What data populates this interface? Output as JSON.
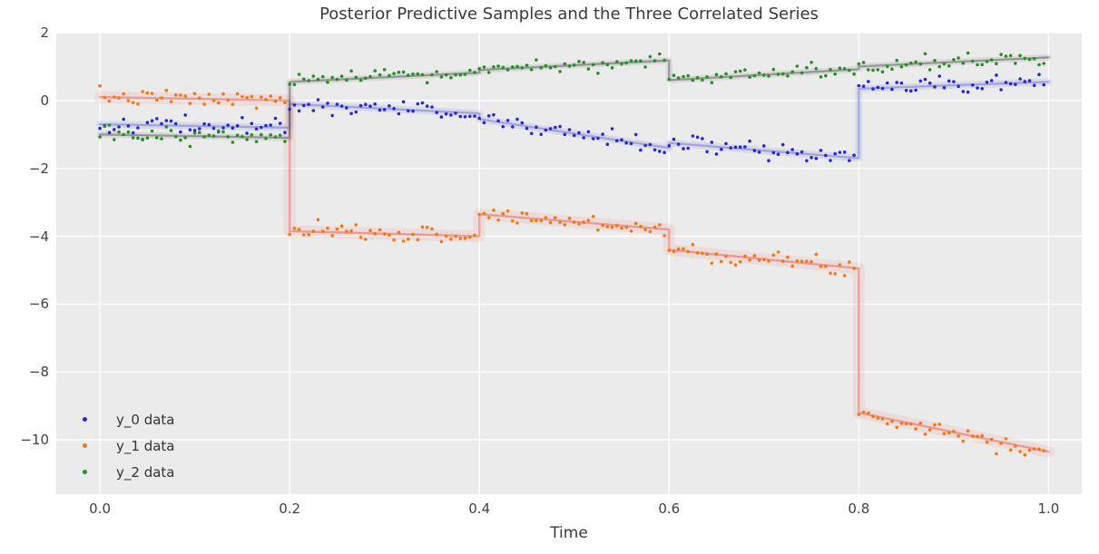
{
  "chart_data": {
    "type": "scatter",
    "title": "Posterior Predictive Samples and the Three Correlated Series",
    "xlabel": "Time",
    "ylabel": "",
    "xlim": [
      -0.046,
      1.035
    ],
    "ylim": [
      -11.6,
      2.0
    ],
    "xticks": [
      0.0,
      0.2,
      0.4,
      0.6,
      0.8,
      1.0
    ],
    "xtick_labels": [
      "0.0",
      "0.2",
      "0.4",
      "0.6",
      "0.8",
      "1.0"
    ],
    "yticks": [
      2,
      0,
      -2,
      -4,
      -6,
      -8,
      -10
    ],
    "ytick_labels": [
      "2",
      "0",
      "−2",
      "−4",
      "−6",
      "−8",
      "−10"
    ],
    "grid": true,
    "plot_bg": "#ebebeb",
    "grid_color": "#ffffff",
    "changepoints": [
      0.2,
      0.4,
      0.6,
      0.8
    ],
    "points_per_segment": 40,
    "legend": {
      "position": "lower left",
      "entries": [
        "y_0 data",
        "y_1 data",
        "y_2 data"
      ]
    },
    "series": [
      {
        "name": "y_0 data",
        "dot_color": "#2828cf",
        "band_halo": "rgba(100,108,224,0.13)",
        "band_core": "rgba(92,98,216,0.45)",
        "halo_width": 8,
        "core_width": 2.3,
        "noise_sd": 0.13,
        "seed": 42,
        "segments": [
          {
            "x": [
              0.0,
              0.2
            ],
            "y": [
              -0.7,
              -0.8
            ]
          },
          {
            "x": [
              0.2,
              0.4
            ],
            "y": [
              -0.1,
              -0.38
            ]
          },
          {
            "x": [
              0.4,
              0.6
            ],
            "y": [
              -0.55,
              -1.4
            ]
          },
          {
            "x": [
              0.6,
              0.8
            ],
            "y": [
              -1.25,
              -1.7
            ]
          },
          {
            "x": [
              0.8,
              1.0
            ],
            "y": [
              0.35,
              0.55
            ]
          }
        ]
      },
      {
        "name": "y_1 data",
        "dot_color": "#fb750d",
        "band_halo": "rgba(238,104,92,0.11)",
        "band_core": "rgba(233,90,80,0.5)",
        "halo_width": 13,
        "core_width": 2.4,
        "noise_sd": 0.12,
        "seed": 7,
        "segments": [
          {
            "x": [
              0.0,
              0.2
            ],
            "y": [
              0.1,
              0.0
            ]
          },
          {
            "x": [
              0.2,
              0.4
            ],
            "y": [
              -3.85,
              -4.0
            ]
          },
          {
            "x": [
              0.4,
              0.6
            ],
            "y": [
              -3.35,
              -3.8
            ]
          },
          {
            "x": [
              0.6,
              0.8
            ],
            "y": [
              -4.4,
              -4.95
            ]
          },
          {
            "x": [
              0.8,
              1.0
            ],
            "y": [
              -9.2,
              -10.35
            ]
          }
        ]
      },
      {
        "name": "y_2 data",
        "dot_color": "#259122",
        "band_halo": "rgba(110,110,110,0.14)",
        "band_core": "rgba(84,84,84,0.5)",
        "halo_width": 7,
        "core_width": 2.3,
        "noise_sd": 0.11,
        "seed": 13,
        "segments": [
          {
            "x": [
              0.0,
              0.2
            ],
            "y": [
              -1.0,
              -1.1
            ]
          },
          {
            "x": [
              0.2,
              0.4
            ],
            "y": [
              0.55,
              0.82
            ]
          },
          {
            "x": [
              0.4,
              0.6
            ],
            "y": [
              0.9,
              1.18
            ]
          },
          {
            "x": [
              0.6,
              0.8
            ],
            "y": [
              0.6,
              0.92
            ]
          },
          {
            "x": [
              0.8,
              1.0
            ],
            "y": [
              1.0,
              1.27
            ]
          }
        ]
      }
    ]
  },
  "layout_text": {
    "title_color": "#3a3a3a",
    "tick_color": "#424242"
  }
}
